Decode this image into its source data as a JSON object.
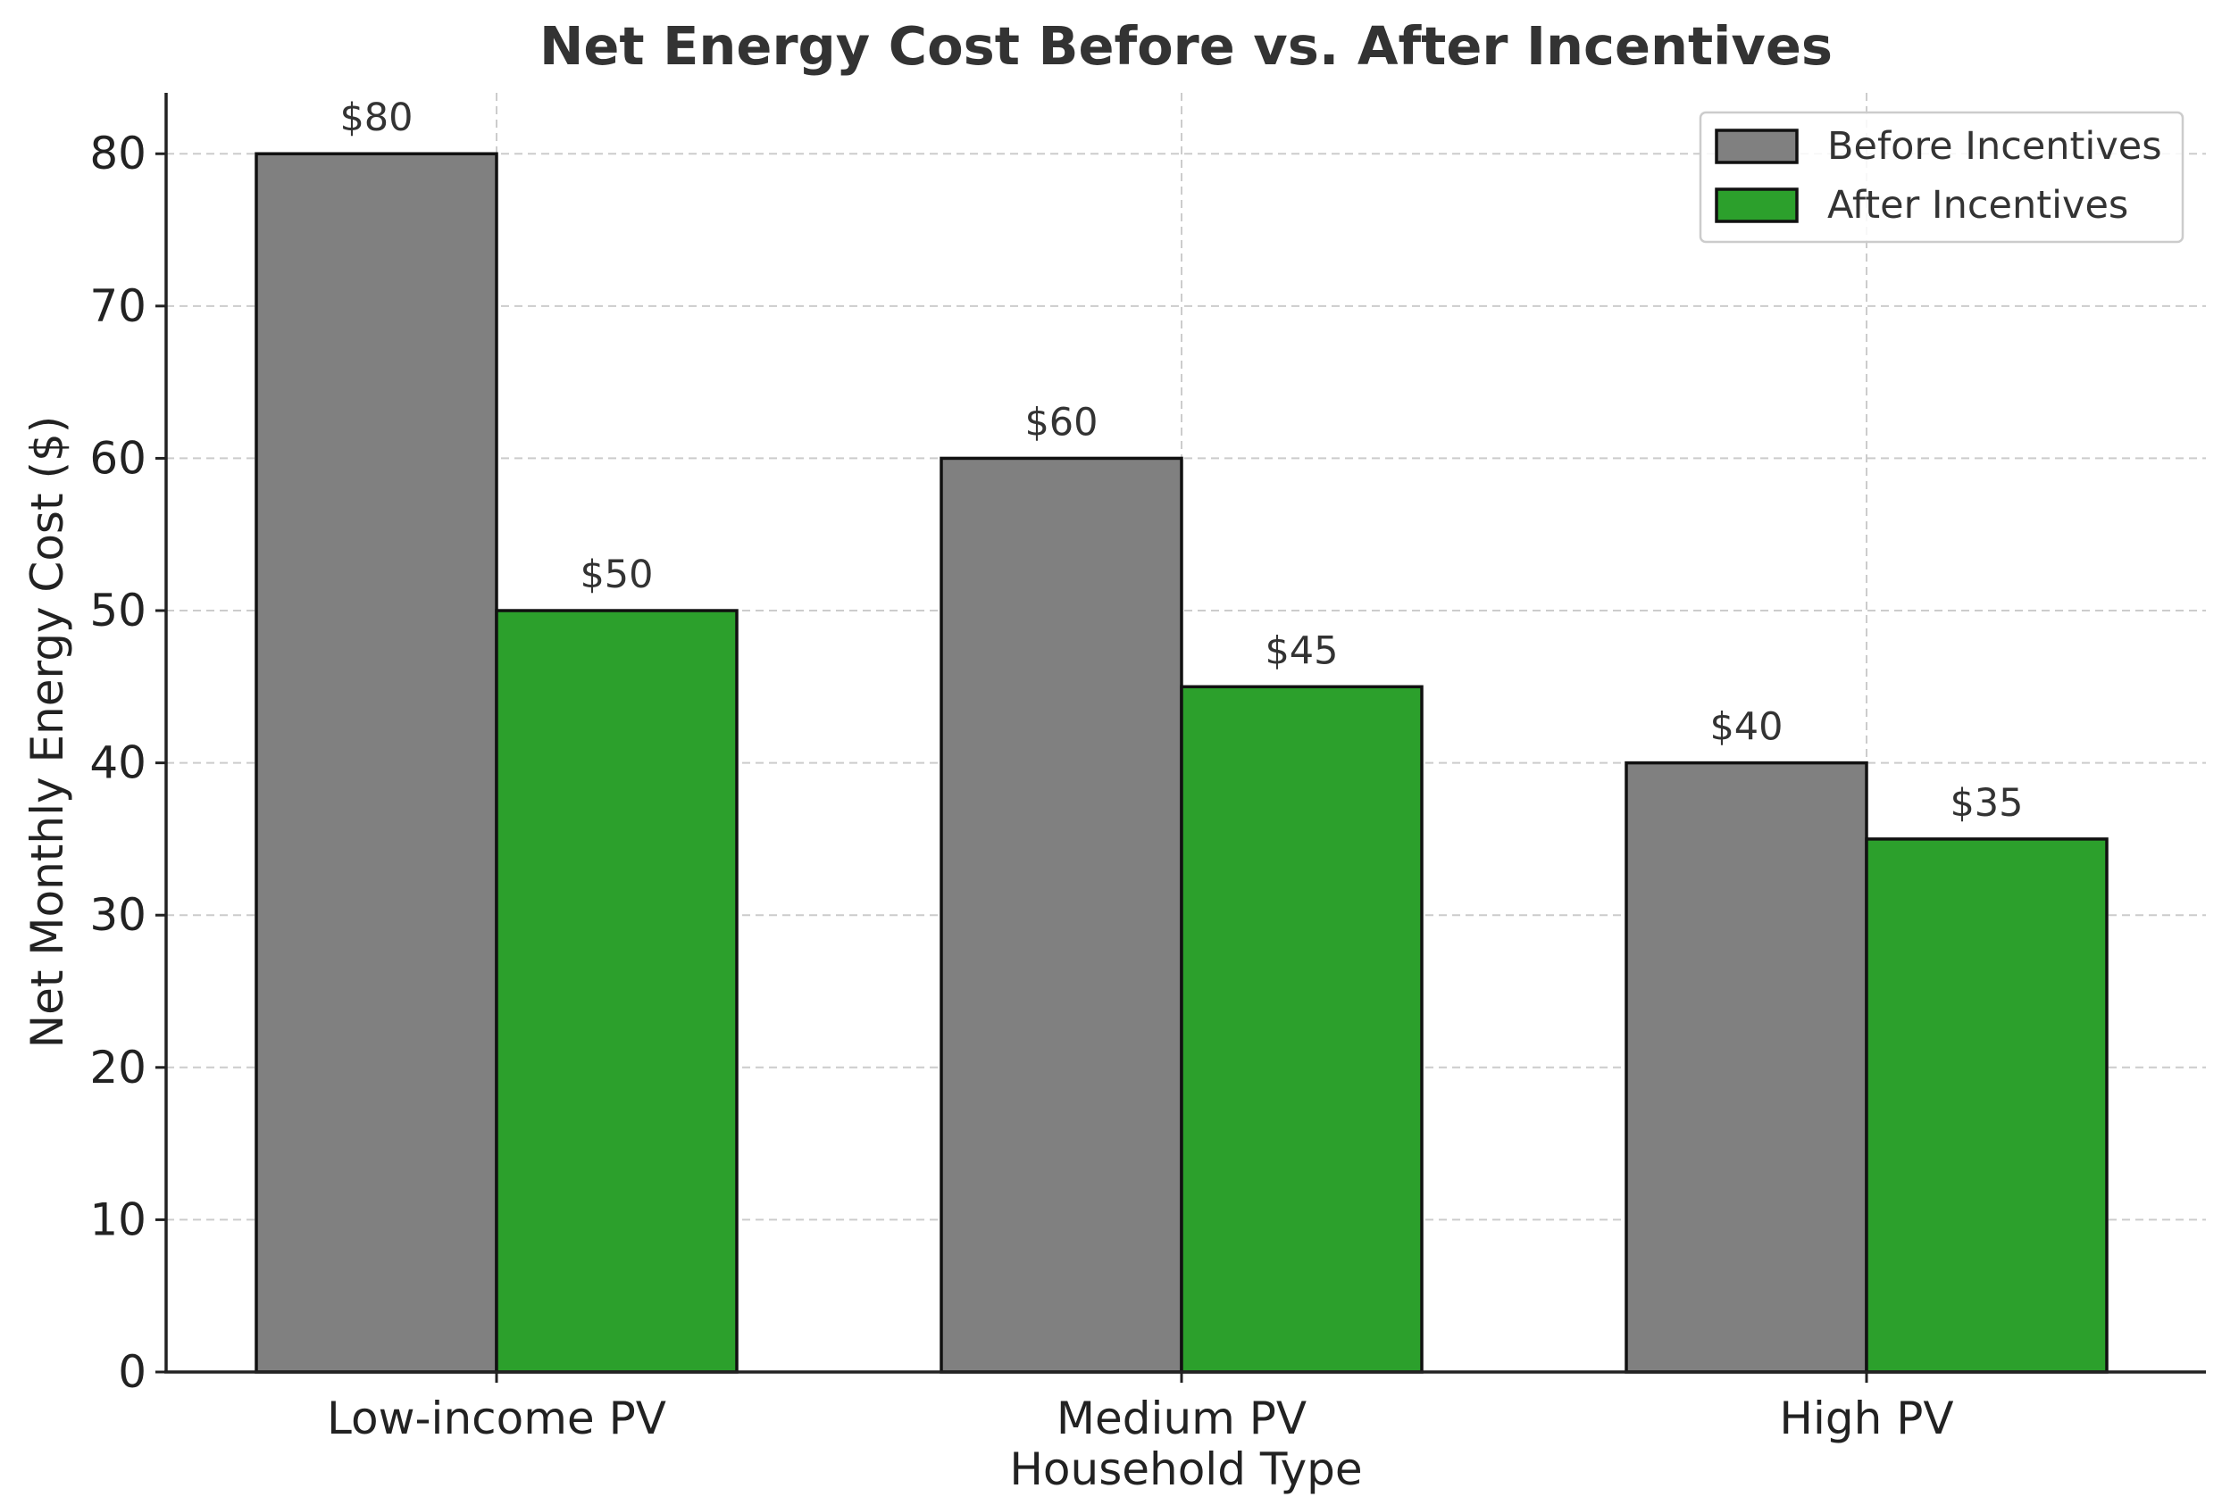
{
  "chart_data": {
    "type": "bar",
    "title": "Net Energy Cost Before vs. After Incentives",
    "xlabel": "Household Type",
    "ylabel": "Net Monthly Energy Cost ($)",
    "categories": [
      "Low-income PV",
      "Medium PV",
      "High PV"
    ],
    "series": [
      {
        "name": "Before Incentives",
        "color": "#808080",
        "values": [
          80,
          60,
          40
        ],
        "labels": [
          "$80",
          "$60",
          "$40"
        ]
      },
      {
        "name": "After Incentives",
        "color": "#2ca02c",
        "values": [
          50,
          45,
          35
        ],
        "labels": [
          "$50",
          "$45",
          "$35"
        ]
      }
    ],
    "ylim": [
      0,
      84
    ],
    "yticks": [
      0,
      10,
      20,
      30,
      40,
      50,
      60,
      70,
      80
    ],
    "grid": true,
    "legend_position": "top-right"
  }
}
